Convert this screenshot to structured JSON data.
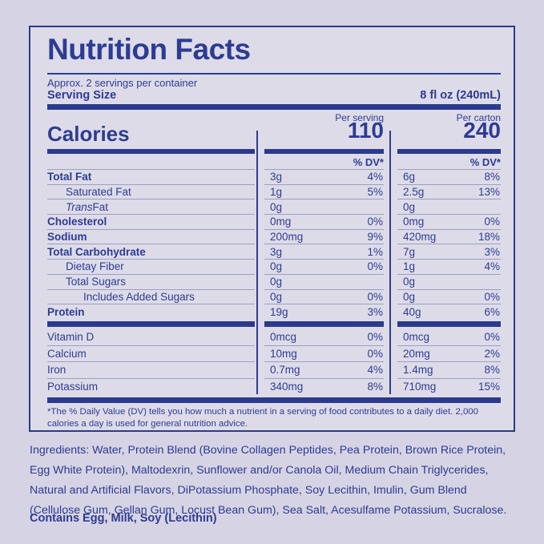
{
  "colors": {
    "bg": "#d6d3e4",
    "panel": "#dedbe9",
    "ink": "#2c3c91",
    "bar": "#2b3a8c",
    "line": "#9aa0bf"
  },
  "label": {
    "title": "Nutrition Facts",
    "servings_per_container": "Approx. 2 servings per container",
    "serving_size_label": "Serving Size",
    "serving_size_value": "8 fl oz (240mL)",
    "calories_label": "Calories",
    "per_serving_label": "Per serving",
    "per_serving_calories": "110",
    "per_carton_label": "Per carton",
    "per_carton_calories": "240",
    "dv_header": "% DV*",
    "footnote": "*The % Daily Value (DV) tells you how much a nutrient in a serving of food contributes to a daily diet. 2,000 calories a day is used for general nutrition advice."
  },
  "nutrient_rows": [
    {
      "name": "Total Fat",
      "bold": true,
      "indent": 0,
      "serving_amount": "3g",
      "serving_dv": "4%",
      "carton_amount": "6g",
      "carton_dv": "8%"
    },
    {
      "name": "Saturated Fat",
      "bold": false,
      "indent": 1,
      "serving_amount": "1g",
      "serving_dv": "5%",
      "carton_amount": "2.5g",
      "carton_dv": "13%"
    },
    {
      "name": "Trans Fat",
      "italic_prefix": "Trans",
      "bold": false,
      "indent": 1,
      "serving_amount": "0g",
      "serving_dv": "",
      "carton_amount": "0g",
      "carton_dv": ""
    },
    {
      "name": "Cholesterol",
      "bold": true,
      "indent": 0,
      "serving_amount": "0mg",
      "serving_dv": "0%",
      "carton_amount": "0mg",
      "carton_dv": "0%"
    },
    {
      "name": "Sodium",
      "bold": true,
      "indent": 0,
      "serving_amount": "200mg",
      "serving_dv": "9%",
      "carton_amount": "420mg",
      "carton_dv": "18%"
    },
    {
      "name": "Total Carbohydrate",
      "bold": true,
      "indent": 0,
      "serving_amount": "3g",
      "serving_dv": "1%",
      "carton_amount": "7g",
      "carton_dv": "3%"
    },
    {
      "name": "Dietay Fiber",
      "bold": false,
      "indent": 1,
      "serving_amount": "0g",
      "serving_dv": "0%",
      "carton_amount": "1g",
      "carton_dv": "4%"
    },
    {
      "name": "Total Sugars",
      "bold": false,
      "indent": 1,
      "serving_amount": "0g",
      "serving_dv": "",
      "carton_amount": "0g",
      "carton_dv": ""
    },
    {
      "name": "Includes Added Sugars",
      "bold": false,
      "indent": 2,
      "serving_amount": "0g",
      "serving_dv": "0%",
      "carton_amount": "0g",
      "carton_dv": "0%"
    },
    {
      "name": "Protein",
      "bold": true,
      "indent": 0,
      "serving_amount": "19g",
      "serving_dv": "3%",
      "carton_amount": "40g",
      "carton_dv": "6%"
    }
  ],
  "mineral_rows": [
    {
      "name": "Vitamin D",
      "serving_amount": "0mcg",
      "serving_dv": "0%",
      "carton_amount": "0mcg",
      "carton_dv": "0%"
    },
    {
      "name": "Calcium",
      "serving_amount": "10mg",
      "serving_dv": "0%",
      "carton_amount": "20mg",
      "carton_dv": "2%"
    },
    {
      "name": "Iron",
      "serving_amount": "0.7mg",
      "serving_dv": "4%",
      "carton_amount": "1.4mg",
      "carton_dv": "8%"
    },
    {
      "name": "Potassium",
      "serving_amount": "340mg",
      "serving_dv": "8%",
      "carton_amount": "710mg",
      "carton_dv": "15%"
    }
  ],
  "ingredients": "Ingredients: Water, Protein Blend (Bovine Collagen Peptides, Pea Protein, Brown Rice Protein, Egg White Protein), Maltodexrin, Sunflower and/or Canola Oil, Medium Chain Triglycerides, Natural and Artificial Flavors, DiPotassium Phosphate, Soy Lecithin, Imulin, Gum Blend (Cellulose Gum, Gellan Gum, Locust Bean Gum), Sea Salt, Acesulfame Potassium, Sucralose.",
  "contains": "Contains Egg, Milk, Soy (Lecithin)"
}
